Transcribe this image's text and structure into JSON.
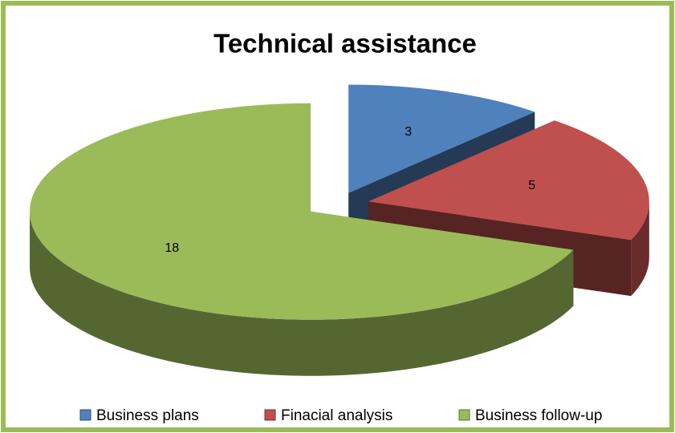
{
  "chart_data": {
    "type": "pie",
    "title": "Technical assistance",
    "categories": [
      "Business plans",
      "Finacial analysis",
      "Business follow-up"
    ],
    "values": [
      3,
      5,
      18
    ],
    "colors": [
      "#4f81bd",
      "#c0504d",
      "#9bbb59"
    ]
  }
}
